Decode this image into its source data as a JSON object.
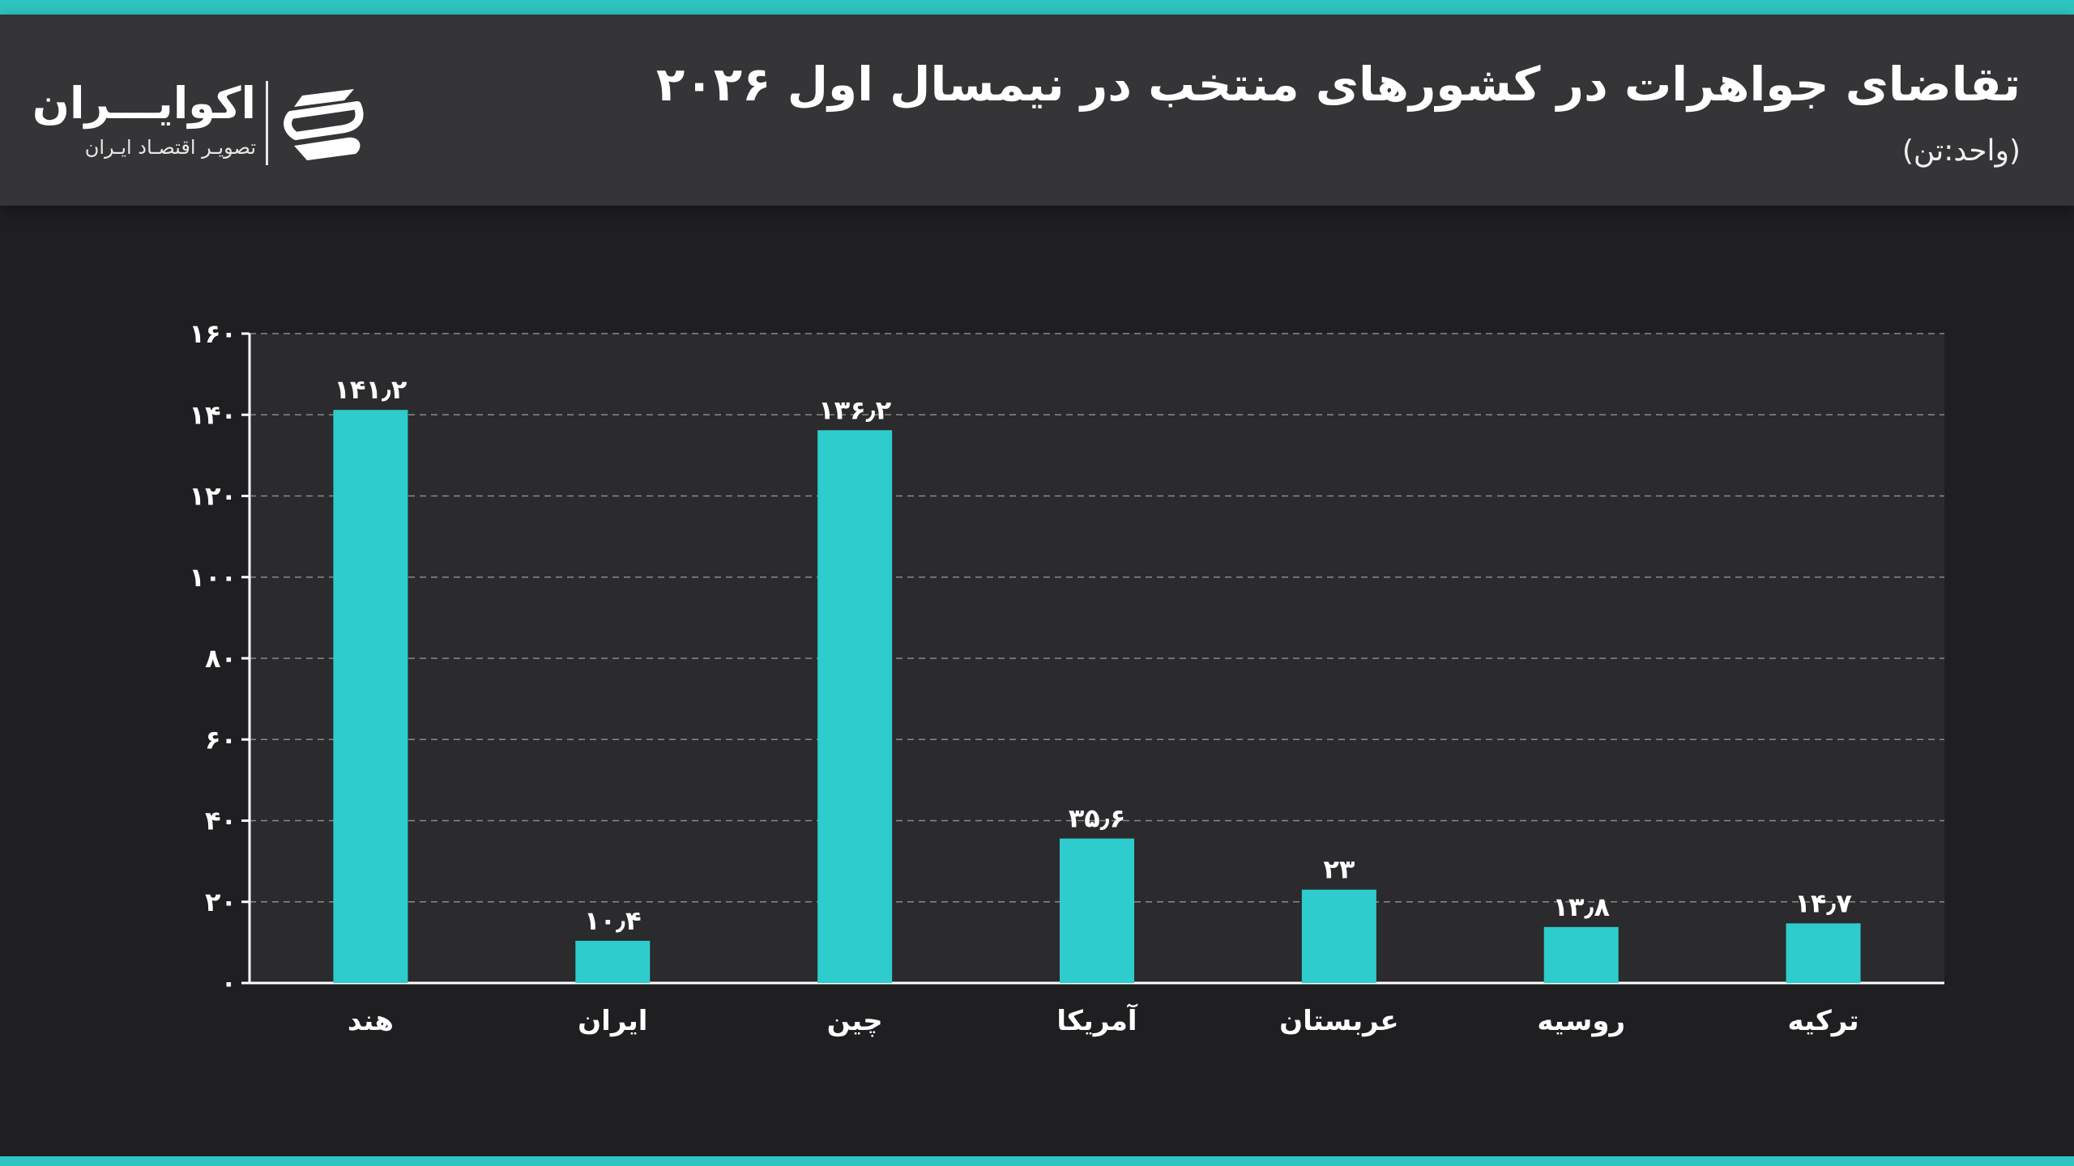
{
  "header": {
    "title": "تقاضای جواهرات در کشورهای منتخب در نیمسال اول ۲۰۲۶",
    "unit": "(واحد:تن)"
  },
  "logo": {
    "name": "اکوایـــران",
    "subtitle": "تصویـر اقتصـاد ایـران",
    "icon": "ecoiran-logo-icon"
  },
  "colors": {
    "accent": "#2ec4c1",
    "bar": "#2ecccc",
    "plot_bg": "#2b2a2c",
    "page_bg": "#1f1e20",
    "header_bg": "#353436"
  },
  "chart_data": {
    "type": "bar",
    "categories": [
      "هند",
      "ایران",
      "چین",
      "آمریکا",
      "عربستان",
      "روسیه",
      "ترکیه"
    ],
    "values": [
      141.2,
      10.4,
      136.2,
      35.6,
      23,
      13.8,
      14.7
    ],
    "value_labels": [
      "۱۴۱٫۲",
      "۱۰٫۴",
      "۱۳۶٫۲",
      "۳۵٫۶",
      "۲۳",
      "۱۳٫۸",
      "۱۴٫۷"
    ],
    "yticks": [
      0,
      20,
      40,
      60,
      80,
      100,
      120,
      140,
      160
    ],
    "ytick_labels": [
      "۰",
      "۲۰",
      "۴۰",
      "۶۰",
      "۸۰",
      "۱۰۰",
      "۱۲۰",
      "۱۴۰",
      "۱۶۰"
    ],
    "ylim": [
      0,
      160
    ],
    "grid": true,
    "title": "",
    "xlabel": "",
    "ylabel": ""
  }
}
